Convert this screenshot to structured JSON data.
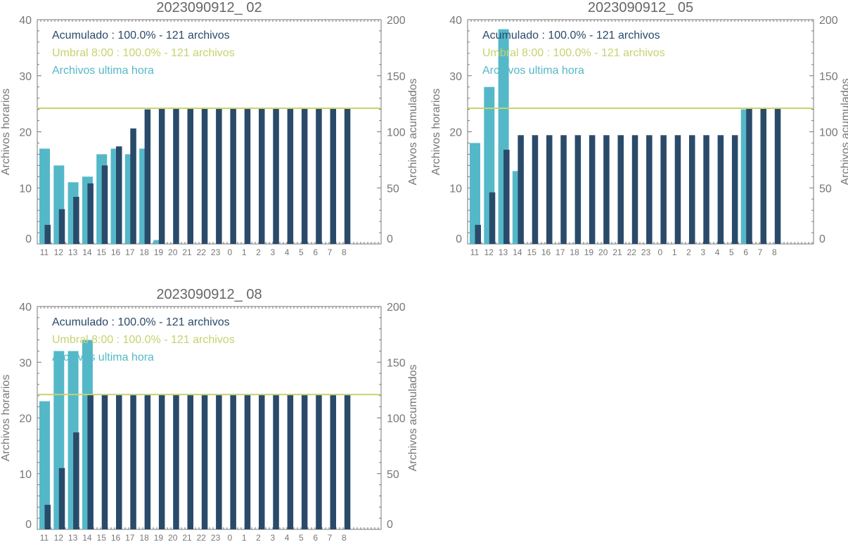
{
  "colors": {
    "hourly": "#54b8c8",
    "cumulative": "#2a4a6a",
    "threshold": "#c8d26e",
    "axis": "#777777",
    "title": "#666666"
  },
  "chart_data": [
    {
      "type": "bar",
      "title": "2023090912_ 02",
      "ylabel_left": "Archivos horarios",
      "ylabel_right": "Archivos acumulados",
      "ylim_left": [
        0,
        40
      ],
      "ylim_right": [
        0,
        200
      ],
      "yticks_left": [
        "0",
        "10",
        "20",
        "30",
        "40"
      ],
      "yticks_right": [
        "0",
        "50",
        "100",
        "150",
        "200"
      ],
      "categories": [
        "11",
        "12",
        "13",
        "14",
        "15",
        "16",
        "17",
        "18",
        "19",
        "20",
        "21",
        "22",
        "23",
        "0",
        "1",
        "2",
        "3",
        "4",
        "5",
        "6",
        "7",
        "8"
      ],
      "legend": [
        "Acumulado : 100.0% - 121 archivos",
        "Umbral 8:00 : 100.0% - 121 archivos",
        "Archivos ultima hora"
      ],
      "series": [
        {
          "name": "Archivos ultima hora",
          "axis": "left",
          "values": [
            17,
            14,
            11,
            12,
            16,
            17,
            16,
            17,
            0.7,
            0,
            0,
            0,
            0,
            0,
            0,
            0,
            0,
            0,
            0,
            0,
            0,
            0
          ]
        },
        {
          "name": "Acumulado",
          "axis": "right",
          "values": [
            17,
            31,
            42,
            54,
            70,
            87,
            103,
            120,
            121,
            121,
            121,
            121,
            121,
            121,
            121,
            121,
            121,
            121,
            121,
            121,
            121,
            121
          ]
        }
      ],
      "threshold_right": 121
    },
    {
      "type": "bar",
      "title": "2023090912_ 05",
      "ylabel_left": "Archivos horarios",
      "ylabel_right": "Archivos acumulados",
      "ylim_left": [
        0,
        40
      ],
      "ylim_right": [
        0,
        200
      ],
      "yticks_left": [
        "0",
        "10",
        "20",
        "30",
        "40"
      ],
      "yticks_right": [
        "0",
        "50",
        "100",
        "150",
        "200"
      ],
      "categories": [
        "11",
        "12",
        "13",
        "14",
        "15",
        "16",
        "17",
        "18",
        "19",
        "20",
        "21",
        "22",
        "23",
        "0",
        "1",
        "2",
        "3",
        "4",
        "5",
        "6",
        "7",
        "8"
      ],
      "legend": [
        "Acumulado : 100.0% - 121 archivos",
        "Umbral 8:00 : 100.0% - 121 archivos",
        "Archivos ultima hora"
      ],
      "series": [
        {
          "name": "Archivos ultima hora",
          "axis": "left",
          "values": [
            18,
            28,
            38.3,
            13,
            0,
            0,
            0,
            0,
            0,
            0,
            0,
            0,
            0,
            0,
            0,
            0,
            0,
            0,
            0,
            24,
            0,
            0
          ]
        },
        {
          "name": "Acumulado",
          "axis": "right",
          "values": [
            17,
            46,
            84,
            97,
            97,
            97,
            97,
            97,
            97,
            97,
            97,
            97,
            97,
            97,
            97,
            97,
            97,
            97,
            97,
            121,
            121,
            121
          ]
        }
      ],
      "threshold_right": 121
    },
    {
      "type": "bar",
      "title": "2023090912_ 08",
      "ylabel_left": "Archivos horarios",
      "ylabel_right": "Archivos acumulados",
      "ylim_left": [
        0,
        40
      ],
      "ylim_right": [
        0,
        200
      ],
      "yticks_left": [
        "0",
        "10",
        "20",
        "30",
        "40"
      ],
      "yticks_right": [
        "0",
        "50",
        "100",
        "150",
        "200"
      ],
      "categories": [
        "11",
        "12",
        "13",
        "14",
        "15",
        "16",
        "17",
        "18",
        "19",
        "20",
        "21",
        "22",
        "23",
        "0",
        "1",
        "2",
        "3",
        "4",
        "5",
        "6",
        "7",
        "8"
      ],
      "legend": [
        "Acumulado : 100.0% - 121 archivos",
        "Umbral 8:00 : 100.0% - 121 archivos",
        "Archivos ultima hora"
      ],
      "series": [
        {
          "name": "Archivos ultima hora",
          "axis": "left",
          "values": [
            23,
            32,
            32,
            34,
            0,
            0,
            0,
            0,
            0,
            0,
            0,
            0,
            0,
            0,
            0,
            0,
            0,
            0,
            0,
            0,
            0,
            0
          ]
        },
        {
          "name": "Acumulado",
          "axis": "right",
          "values": [
            22,
            55,
            87,
            121,
            121,
            121,
            121,
            121,
            121,
            121,
            121,
            121,
            121,
            121,
            121,
            121,
            121,
            121,
            121,
            121,
            121,
            121
          ]
        }
      ],
      "threshold_right": 121
    }
  ]
}
